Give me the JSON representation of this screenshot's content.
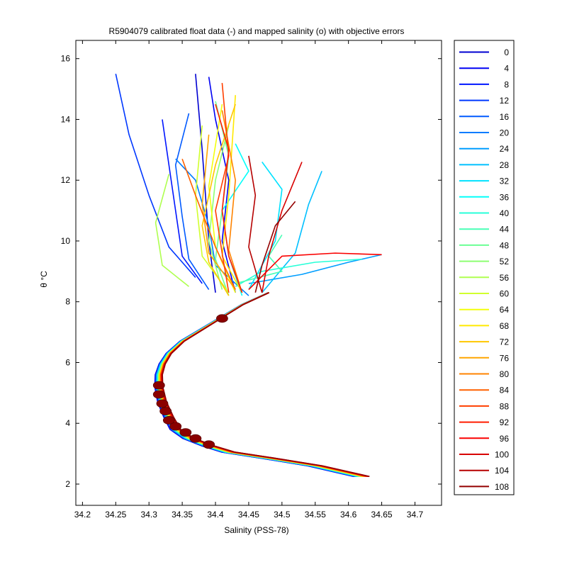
{
  "chart_data": {
    "type": "line",
    "title": "R5904079 calibrated float data (-) and mapped salinity (o) with objective errors",
    "xlabel": "Salinity (PSS-78)",
    "ylabel": "θ °C",
    "xlim": [
      34.19,
      34.74
    ],
    "ylim": [
      1.3,
      16.6
    ],
    "xticks": [
      34.2,
      34.25,
      34.3,
      34.35,
      34.4,
      34.45,
      34.5,
      34.55,
      34.6,
      34.65,
      34.7
    ],
    "xtick_labels": [
      "34.2",
      "34.25",
      "34.3",
      "34.35",
      "34.4",
      "34.45",
      "34.5",
      "34.55",
      "34.6",
      "34.65",
      "34.7"
    ],
    "yticks": [
      2,
      4,
      6,
      8,
      10,
      12,
      14,
      16
    ],
    "ytick_labels": [
      "2",
      "4",
      "6",
      "8",
      "10",
      "12",
      "14",
      "16"
    ],
    "grid": false,
    "legend_position": "outside-right",
    "legend_entries": [
      "0",
      "4",
      "8",
      "12",
      "16",
      "20",
      "24",
      "28",
      "32",
      "36",
      "40",
      "44",
      "48",
      "52",
      "56",
      "60",
      "64",
      "68",
      "72",
      "76",
      "80",
      "84",
      "88",
      "92",
      "96",
      "100",
      "104",
      "108"
    ],
    "colormap": "jet",
    "deep_profile": {
      "salinity": [
        34.62,
        34.55,
        34.48,
        34.42,
        34.39,
        34.36,
        34.34,
        34.33,
        34.32,
        34.315,
        34.315,
        34.32,
        34.33,
        34.35,
        34.38,
        34.41,
        34.44,
        34.48
      ],
      "theta": [
        2.25,
        2.6,
        2.85,
        3.05,
        3.25,
        3.5,
        3.8,
        4.2,
        4.7,
        5.2,
        5.6,
        5.95,
        6.3,
        6.7,
        7.1,
        7.5,
        7.9,
        8.3
      ]
    },
    "mapped_salinity": {
      "salinity": [
        34.39,
        34.37,
        34.355,
        34.34,
        34.33,
        34.325,
        34.32,
        34.315,
        34.315,
        34.41
      ],
      "theta": [
        3.3,
        3.5,
        3.7,
        3.9,
        4.1,
        4.4,
        4.65,
        4.95,
        5.25,
        7.45
      ]
    },
    "upper_branches": [
      {
        "salinity": [
          34.4,
          34.39,
          34.385,
          34.38,
          34.37
        ],
        "theta": [
          8.3,
          10.0,
          11.5,
          13.0,
          15.5
        ]
      },
      {
        "salinity": [
          34.43,
          34.41,
          34.42,
          34.4,
          34.39
        ],
        "theta": [
          8.3,
          10.0,
          12.0,
          14.0,
          15.4
        ]
      },
      {
        "salinity": [
          34.38,
          34.35,
          34.34,
          34.33,
          34.32
        ],
        "theta": [
          8.6,
          9.5,
          11.0,
          12.5,
          14.0
        ]
      },
      {
        "salinity": [
          34.37,
          34.33,
          34.3,
          34.27,
          34.25
        ],
        "theta": [
          8.8,
          9.8,
          11.5,
          13.5,
          15.5
        ]
      },
      {
        "salinity": [
          34.39,
          34.36,
          34.35,
          34.34,
          34.36
        ],
        "theta": [
          8.4,
          9.4,
          10.8,
          12.5,
          14.2
        ]
      },
      {
        "salinity": [
          34.45,
          34.4,
          34.39,
          34.37,
          34.34
        ],
        "theta": [
          8.2,
          9.2,
          10.5,
          12.0,
          12.7
        ]
      },
      {
        "salinity": [
          34.45,
          34.53,
          34.6,
          34.65
        ],
        "theta": [
          8.6,
          8.9,
          9.3,
          9.55
        ]
      },
      {
        "salinity": [
          34.47,
          34.52,
          34.54,
          34.56
        ],
        "theta": [
          8.3,
          9.6,
          11.2,
          12.3
        ]
      },
      {
        "salinity": [
          34.45,
          34.49,
          34.5,
          34.47
        ],
        "theta": [
          8.4,
          10.0,
          11.7,
          12.6
        ]
      },
      {
        "salinity": [
          34.44,
          34.42,
          34.41,
          34.45,
          34.43
        ],
        "theta": [
          8.2,
          9.5,
          11.0,
          12.3,
          13.2
        ]
      },
      {
        "salinity": [
          34.43,
          34.47,
          34.55,
          34.62
        ],
        "theta": [
          8.5,
          9.0,
          9.3,
          9.4
        ]
      },
      {
        "salinity": [
          34.43,
          34.5,
          34.48,
          34.5
        ],
        "theta": [
          8.6,
          9.0,
          9.5,
          10.2
        ]
      },
      {
        "salinity": [
          34.42,
          34.4,
          34.41,
          34.42,
          34.4
        ],
        "theta": [
          8.2,
          9.4,
          11.0,
          12.8,
          14.6
        ]
      },
      {
        "salinity": [
          34.41,
          34.39,
          34.4,
          34.42
        ],
        "theta": [
          8.4,
          10.0,
          12.0,
          13.8
        ]
      },
      {
        "salinity": [
          34.36,
          34.32,
          34.31,
          34.33
        ],
        "theta": [
          8.5,
          9.2,
          10.6,
          12.2
        ]
      },
      {
        "salinity": [
          34.42,
          34.38,
          34.37,
          34.38
        ],
        "theta": [
          8.3,
          9.5,
          11.5,
          13.8
        ]
      },
      {
        "salinity": [
          34.43,
          34.4,
          34.39,
          34.41
        ],
        "theta": [
          8.3,
          9.8,
          11.8,
          14.5
        ]
      },
      {
        "salinity": [
          34.44,
          34.41,
          34.42,
          34.43
        ],
        "theta": [
          8.3,
          9.5,
          11.5,
          14.8
        ]
      },
      {
        "salinity": [
          34.42,
          34.39,
          34.38,
          34.4,
          34.43
        ],
        "theta": [
          8.2,
          9.3,
          10.5,
          12.5,
          14.5
        ]
      },
      {
        "salinity": [
          34.43,
          34.39,
          34.38,
          34.39
        ],
        "theta": [
          8.4,
          9.6,
          11.2,
          13.5
        ]
      },
      {
        "salinity": [
          34.44,
          34.42,
          34.43,
          34.41
        ],
        "theta": [
          8.3,
          9.7,
          12.0,
          14.3
        ]
      },
      {
        "salinity": [
          34.43,
          34.4,
          34.37,
          34.35
        ],
        "theta": [
          8.4,
          9.8,
          11.5,
          12.7
        ]
      },
      {
        "salinity": [
          34.42,
          34.41,
          34.4,
          34.42,
          34.41
        ],
        "theta": [
          8.3,
          9.6,
          11.0,
          12.8,
          15.2
        ]
      },
      {
        "salinity": [
          34.44,
          34.42,
          34.41,
          34.42,
          34.4
        ],
        "theta": [
          8.3,
          9.5,
          11.0,
          13.0,
          14.5
        ]
      },
      {
        "salinity": [
          34.45,
          34.5,
          34.58,
          34.65
        ],
        "theta": [
          8.4,
          9.5,
          9.6,
          9.55
        ]
      },
      {
        "salinity": [
          34.47,
          34.48,
          34.5,
          34.53
        ],
        "theta": [
          8.3,
          9.5,
          11.0,
          12.6
        ]
      },
      {
        "salinity": [
          34.47,
          34.45,
          34.46,
          34.45
        ],
        "theta": [
          8.3,
          9.8,
          11.5,
          12.8
        ]
      },
      {
        "salinity": [
          34.46,
          34.47,
          34.49,
          34.52
        ],
        "theta": [
          8.3,
          9.2,
          10.5,
          11.3
        ]
      }
    ]
  }
}
